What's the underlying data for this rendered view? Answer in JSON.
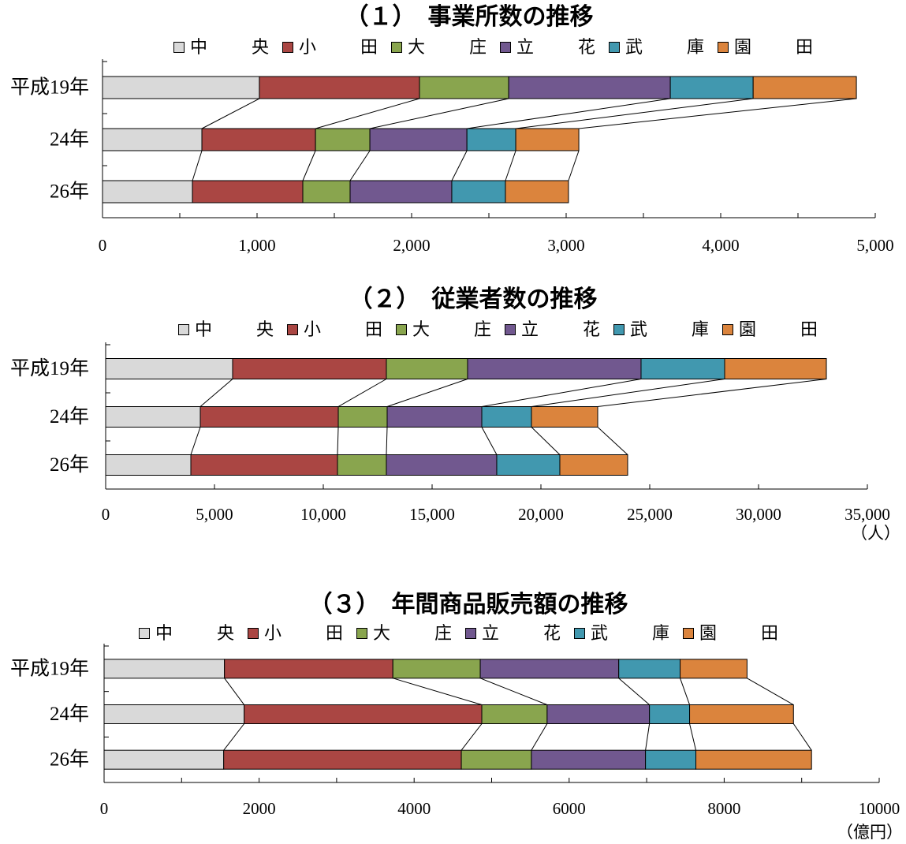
{
  "chart_data": [
    {
      "type": "bar",
      "orientation": "horizontal",
      "stacked": true,
      "title": "（１）　事業所数の推移",
      "categories": [
        "平成19年",
        "24年",
        "26年"
      ],
      "series": [
        {
          "name": "中　　央",
          "color": "#d9d9d9",
          "values": [
            1015,
            643,
            582
          ]
        },
        {
          "name": "小　　田",
          "color": "#aa4643",
          "values": [
            1036,
            735,
            714
          ]
        },
        {
          "name": "大　　庄",
          "color": "#89a54e",
          "values": [
            577,
            352,
            306
          ]
        },
        {
          "name": "立　　花",
          "color": "#71588f",
          "values": [
            1046,
            628,
            658
          ]
        },
        {
          "name": "武　　庫",
          "color": "#4198af",
          "values": [
            536,
            316,
            347
          ]
        },
        {
          "name": "園　　田",
          "color": "#db843d",
          "values": [
            668,
            408,
            408
          ]
        }
      ],
      "xlim": [
        0,
        5000
      ],
      "xticks": [
        0,
        1000,
        2000,
        3000,
        4000,
        5000
      ],
      "xtick_labels": [
        "0",
        "1,000",
        "2,000",
        "3,000",
        "4,000",
        "5,000"
      ],
      "series_lines": true,
      "grid": false,
      "legend": "top"
    },
    {
      "type": "bar",
      "orientation": "horizontal",
      "stacked": true,
      "title": "（２）　従業者数の推移",
      "categories": [
        "平成19年",
        "24年",
        "26年"
      ],
      "series": [
        {
          "name": "中　　央",
          "color": "#d9d9d9",
          "values": [
            5833,
            4348,
            3913
          ]
        },
        {
          "name": "小　　田",
          "color": "#aa4643",
          "values": [
            7065,
            6341,
            6739
          ]
        },
        {
          "name": "大　　庄",
          "color": "#89a54e",
          "values": [
            3732,
            2246,
            2246
          ]
        },
        {
          "name": "立　　花",
          "color": "#71588f",
          "values": [
            7971,
            4348,
            5072
          ]
        },
        {
          "name": "武　　庫",
          "color": "#4198af",
          "values": [
            3841,
            2283,
            2899
          ]
        },
        {
          "name": "園　　田",
          "color": "#db843d",
          "values": [
            4674,
            3043,
            3116
          ]
        }
      ],
      "xlim": [
        0,
        35000
      ],
      "xticks": [
        0,
        5000,
        10000,
        15000,
        20000,
        25000,
        30000,
        35000
      ],
      "xtick_labels": [
        "0",
        "5,000",
        "10,000",
        "15,000",
        "20,000",
        "25,000",
        "30,000",
        "35,000"
      ],
      "unit": "（人）",
      "series_lines": true,
      "grid": false,
      "legend": "top"
    },
    {
      "type": "bar",
      "orientation": "horizontal",
      "stacked": true,
      "title": "（３）　年間商品販売額の推移",
      "categories": [
        "平成19年",
        "24年",
        "26年"
      ],
      "series": [
        {
          "name": "中　　央",
          "color": "#d9d9d9",
          "values": [
            1553,
            1807,
            1543
          ]
        },
        {
          "name": "小　　田",
          "color": "#aa4643",
          "values": [
            2173,
            3066,
            3066
          ]
        },
        {
          "name": "大　　庄",
          "color": "#89a54e",
          "values": [
            1127,
            843,
            904
          ]
        },
        {
          "name": "立　　花",
          "color": "#71588f",
          "values": [
            1787,
            1320,
            1472
          ]
        },
        {
          "name": "武　　庫",
          "color": "#4198af",
          "values": [
            792,
            518,
            650
          ]
        },
        {
          "name": "園　　田",
          "color": "#db843d",
          "values": [
            863,
            1340,
            1492
          ]
        }
      ],
      "xlim": [
        0,
        10000
      ],
      "xticks": [
        0,
        2000,
        4000,
        6000,
        8000,
        10000
      ],
      "xtick_labels": [
        "0",
        "2000",
        "4000",
        "6000",
        "8000",
        "10000"
      ],
      "unit": "（億円）",
      "series_lines": true,
      "grid": false,
      "legend": "top"
    }
  ]
}
